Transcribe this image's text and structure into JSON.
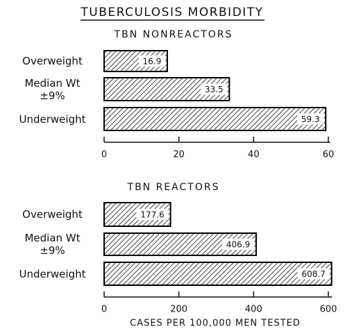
{
  "title": "TUBERCULOSIS MORBIDITY",
  "chart_data": [
    {
      "type": "bar",
      "orientation": "horizontal",
      "subtitle": "TBN NONREACTORS",
      "categories": [
        "Overweight",
        "Median Wt\n±9%",
        "Underweight"
      ],
      "values": [
        16.9,
        33.5,
        59.3
      ],
      "color": "#000000",
      "xlim": [
        0,
        60.5
      ],
      "xticks": [
        0,
        20,
        40,
        60
      ]
    },
    {
      "type": "bar",
      "orientation": "horizontal",
      "subtitle": "TBN REACTORS",
      "categories": [
        "Overweight",
        "Median Wt\n±9%",
        "Underweight"
      ],
      "values": [
        177.6,
        406.9,
        608.7
      ],
      "color": "#000000",
      "xlim": [
        0,
        610
      ],
      "xticks": [
        0,
        200,
        400,
        600
      ],
      "xlabel": "CASES PER 100,000 MEN TESTED"
    }
  ]
}
